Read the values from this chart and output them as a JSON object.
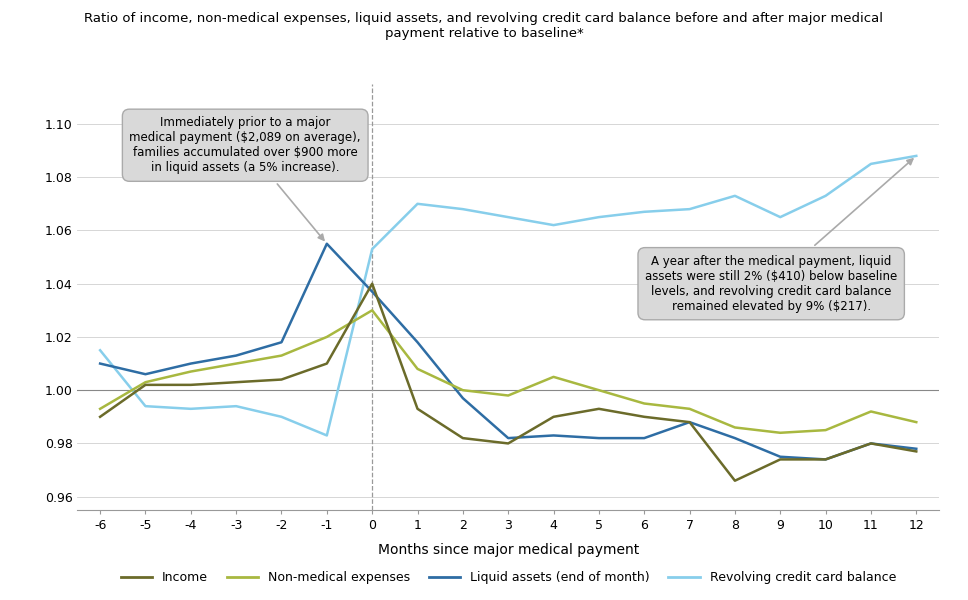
{
  "title": "Ratio of income, non-medical expenses, liquid assets, and revolving credit card balance before and after major medical\npayment relative to baseline*",
  "xlabel": "Months since major medical payment",
  "months": [
    -6,
    -5,
    -4,
    -3,
    -2,
    -1,
    0,
    1,
    2,
    3,
    4,
    5,
    6,
    7,
    8,
    9,
    10,
    11,
    12
  ],
  "income": [
    0.99,
    1.002,
    1.002,
    1.003,
    1.004,
    1.01,
    1.04,
    0.993,
    0.982,
    0.98,
    0.99,
    0.993,
    0.99,
    0.988,
    0.966,
    0.974,
    0.974,
    0.98,
    0.977
  ],
  "non_medical": [
    0.993,
    1.003,
    1.007,
    1.01,
    1.013,
    1.02,
    1.03,
    1.008,
    1.0,
    0.998,
    1.005,
    1.0,
    0.995,
    0.993,
    0.986,
    0.984,
    0.985,
    0.992,
    0.988
  ],
  "liquid_assets": [
    1.01,
    1.006,
    1.01,
    1.013,
    1.018,
    1.055,
    1.037,
    1.018,
    0.997,
    0.982,
    0.983,
    0.982,
    0.982,
    0.988,
    0.982,
    0.975,
    0.974,
    0.98,
    0.978
  ],
  "revolving_cc": [
    1.015,
    0.994,
    0.993,
    0.994,
    0.99,
    0.983,
    1.053,
    1.07,
    1.068,
    1.065,
    1.062,
    1.065,
    1.067,
    1.068,
    1.073,
    1.065,
    1.073,
    1.085,
    1.088
  ],
  "income_color": "#6b6b2a",
  "non_medical_color": "#a8b840",
  "liquid_assets_color": "#2e6da4",
  "revolving_cc_color": "#87ceeb",
  "annotation1_text": "Immediately prior to a major\nmedical payment ($2,089 on average),\nfamilies accumulated over $900 more\nin liquid assets (a 5% increase).",
  "annotation2_text": "A year after the medical payment, liquid\nassets were still 2% ($410) below baseline\nlevels, and revolving credit card balance\nremained elevated by 9% ($217).",
  "background_color": "#ffffff",
  "grid_color": "#d0d0d0",
  "ylim": [
    0.955,
    1.115
  ],
  "yticks": [
    0.96,
    0.98,
    1.0,
    1.02,
    1.04,
    1.06,
    1.08,
    1.1
  ]
}
